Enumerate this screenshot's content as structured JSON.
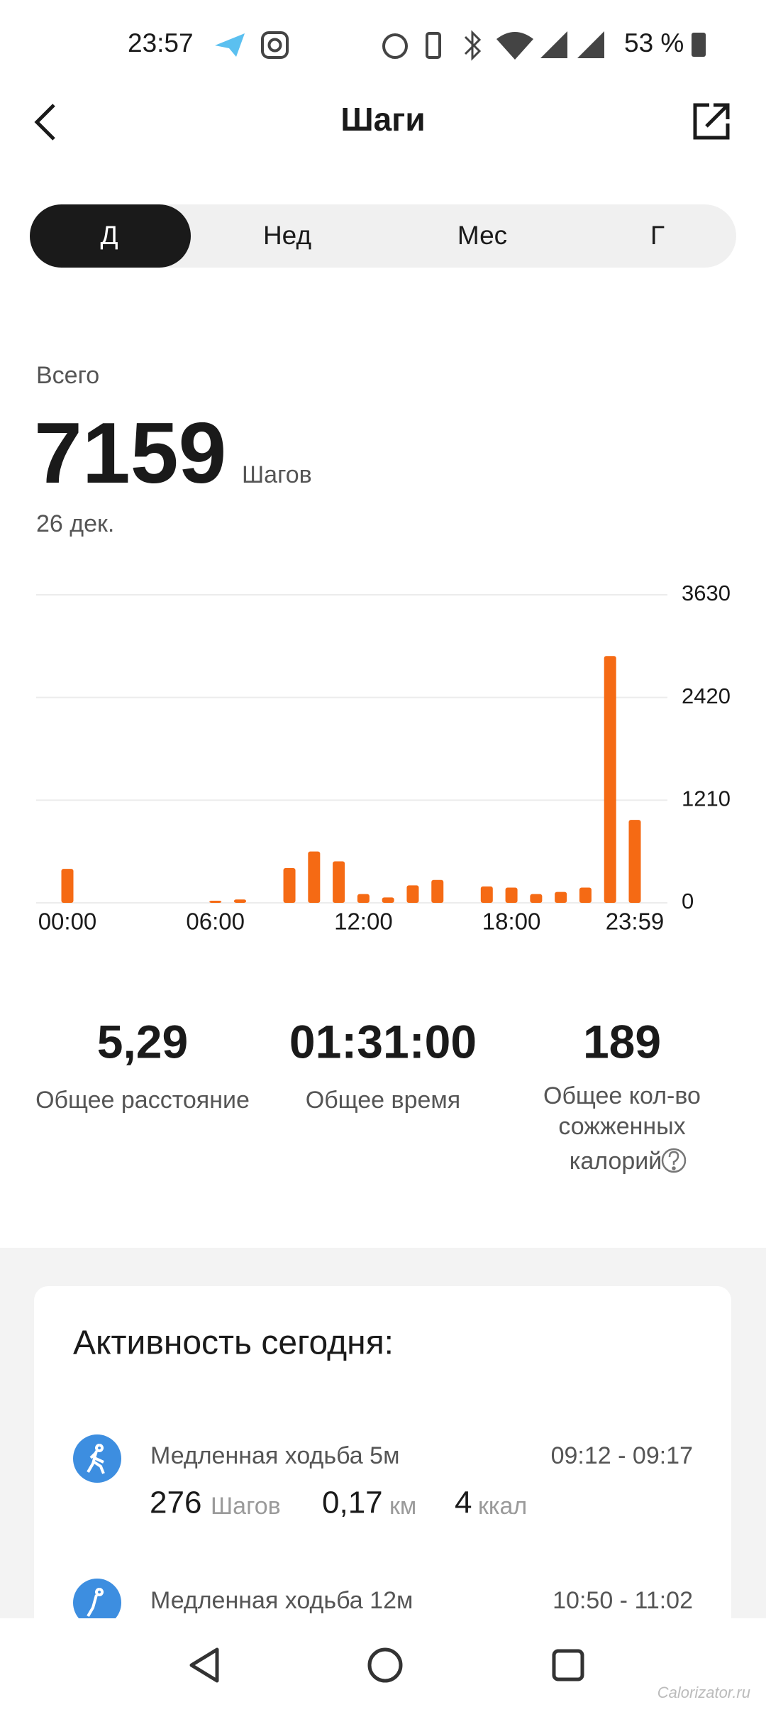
{
  "status_bar": {
    "time": "23:57",
    "battery": "53 %"
  },
  "header": {
    "title": "Шаги"
  },
  "tabs": [
    "Д",
    "Нед",
    "Мес",
    "Г"
  ],
  "summary": {
    "label": "Всего",
    "value": 7159,
    "unit": "Шагов",
    "date": "26 дек."
  },
  "chart_data": {
    "type": "bar",
    "categories": [
      "00:00",
      null,
      null,
      null,
      null,
      null,
      "06:00",
      null,
      null,
      null,
      null,
      null,
      "12:00",
      null,
      null,
      null,
      null,
      null,
      "18:00",
      null,
      null,
      null,
      null,
      "23:59"
    ],
    "values": [
      400,
      0,
      0,
      0,
      0,
      0,
      25,
      40,
      0,
      410,
      605,
      489,
      103,
      64,
      206,
      270,
      0,
      193,
      180,
      103,
      129,
      180,
      2909,
      978
    ],
    "color": "#f56a14",
    "ylim": [
      0,
      3630
    ],
    "yticks": [
      0,
      1210,
      2420,
      3630
    ],
    "grid": true
  },
  "stats": [
    {
      "value": "5,29",
      "label": [
        "Общее расстояние"
      ]
    },
    {
      "value": "01:31:00",
      "label": [
        "Общее время"
      ]
    },
    {
      "value": 189,
      "label": [
        "Общее кол-во",
        "сожженных",
        "калорий"
      ]
    }
  ],
  "activity": {
    "title": "Активность сегодня:",
    "items": [
      {
        "name": "Медленная ходьба 5м",
        "time": "09:12 - 09:17",
        "steps": 276,
        "steps_unit": "Шагов",
        "distance": "0,17",
        "distance_unit": "км",
        "calories": 4,
        "calories_unit": "ккал"
      },
      {
        "name": "Медленная ходьба 12м",
        "time": "10:50 - 11:02"
      }
    ]
  },
  "watermark": "Calorizator.ru"
}
